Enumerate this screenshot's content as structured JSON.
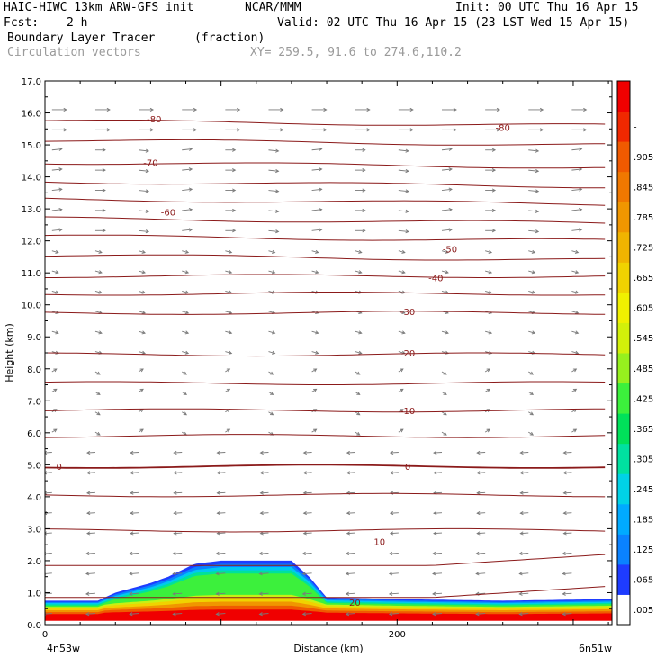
{
  "header": {
    "model": "HAIC-HIWC 13km ARW-GFS init",
    "org": "NCAR/MMM",
    "init": "Init: 00 UTC Thu 16 Apr 15",
    "fcst_label": "Fcst:",
    "fcst_value": "2 h",
    "valid": "Valid: 02 UTC Thu 16 Apr 15 (23 LST Wed 15 Apr 15)",
    "field": "Boundary Layer Tracer",
    "field_units": "(fraction)",
    "vectors": "Circulation vectors",
    "xy": "XY= 259.5, 91.6 to 274.6,110.2"
  },
  "chart_data": {
    "type": "heatmap",
    "xlabel": "Distance (km)",
    "ylabel": "Height (km)",
    "xlim": [
      0,
      322
    ],
    "ylim": [
      0,
      17
    ],
    "x_ticks": [
      "0",
      "200"
    ],
    "y_ticks": [
      "0.0",
      "1.0",
      "2.0",
      "3.0",
      "4.0",
      "5.0",
      "6.0",
      "7.0",
      "8.0",
      "9.0",
      "10.0",
      "11.0",
      "12.0",
      "13.0",
      "14.0",
      "15.0",
      "16.0",
      "17.0"
    ],
    "x_endpoints": [
      "4n53w",
      "6n51w"
    ],
    "colorbar_labels": [
      ".005",
      ".065",
      ".125",
      ".185",
      ".245",
      ".305",
      ".365",
      ".425",
      ".485",
      ".545",
      ".605",
      ".665",
      ".725",
      ".785",
      ".845",
      ".905",
      "-"
    ],
    "colorbar_colors": [
      "#ffffff",
      "#1e3cff",
      "#0a82ff",
      "#00aaff",
      "#00d2e6",
      "#00e1a0",
      "#00e15a",
      "#3cf03c",
      "#96f01e",
      "#d2f00a",
      "#f0f000",
      "#f0d200",
      "#f0b400",
      "#f09600",
      "#f07800",
      "#f05a00",
      "#f02800",
      "#f00000"
    ],
    "temperature_contours": [
      {
        "label": "-80",
        "height": 15.82,
        "label_x": 62
      },
      {
        "label": "-80",
        "height": 15.55,
        "label_x": 260
      },
      {
        "label": "-70",
        "height": 14.45,
        "label_x": 60
      },
      {
        "label": "-60",
        "height": 12.9,
        "label_x": 70
      },
      {
        "label": "-50",
        "height": 11.75,
        "label_x": 230
      },
      {
        "label": "-40",
        "height": 10.85,
        "label_x": 222
      },
      {
        "label": "-30",
        "height": 9.8,
        "label_x": 206
      },
      {
        "label": "-20",
        "height": 8.5,
        "label_x": 206
      },
      {
        "label": "-10",
        "height": 6.7,
        "label_x": 206
      },
      {
        "label": "0",
        "height": 4.95,
        "label_x": 8
      },
      {
        "label": "0",
        "height": 4.95,
        "label_x": 206
      },
      {
        "label": "10",
        "height": 2.6,
        "label_x": 190
      },
      {
        "label": "20",
        "height": 0.7,
        "label_x": 176
      }
    ],
    "tracer_top_profile": {
      "x": [
        0,
        30,
        40,
        60,
        70,
        85,
        100,
        140,
        150,
        160,
        200,
        260,
        322
      ],
      "top": [
        0.75,
        0.75,
        1.0,
        1.3,
        1.5,
        1.9,
        2.0,
        2.0,
        1.5,
        0.85,
        0.8,
        0.75,
        0.8
      ]
    }
  },
  "colors": {
    "contour": "#8b1a1a",
    "vector": "#7a7a7a",
    "axis": "#000000"
  }
}
